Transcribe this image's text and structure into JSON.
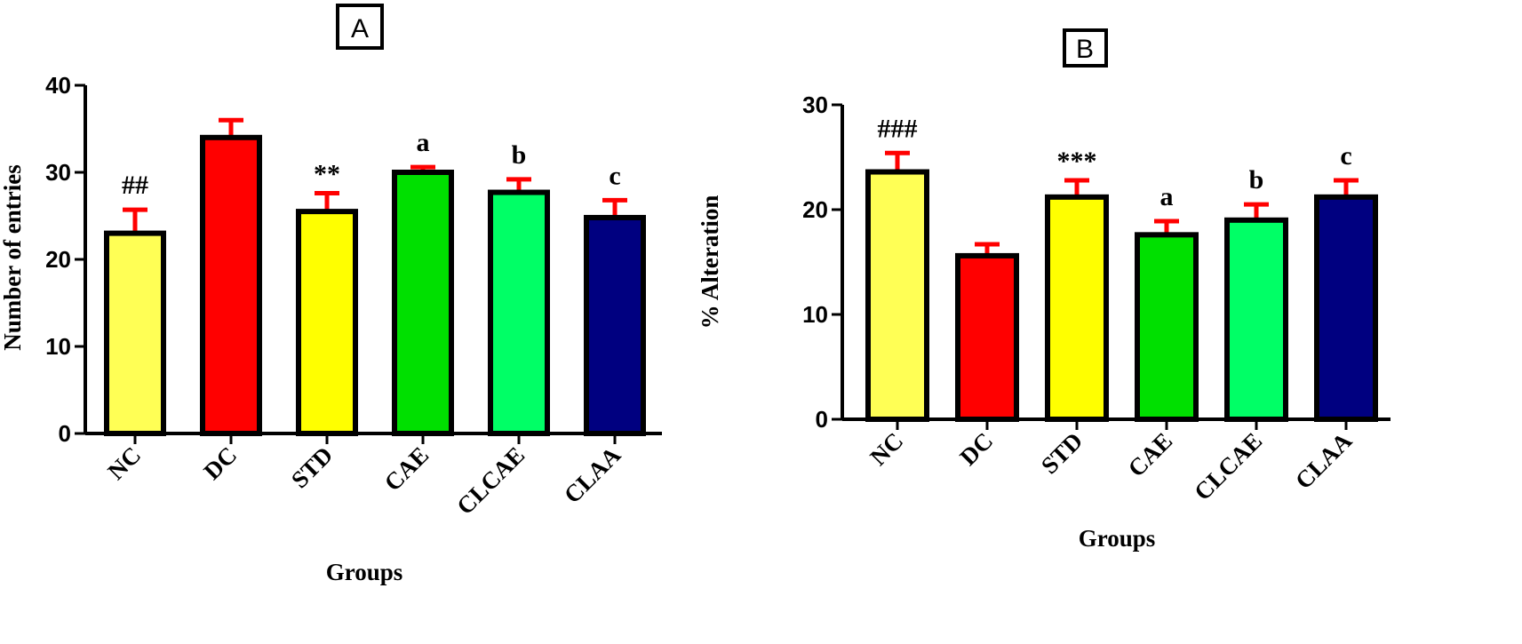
{
  "chart_data": [
    {
      "type": "bar",
      "panel_label": "A",
      "categories": [
        "NC",
        "DC",
        "STD",
        "CAE",
        "CLCAE",
        "CLAA"
      ],
      "values": [
        23,
        34,
        25.5,
        30,
        27.7,
        24.8
      ],
      "errors": [
        2.7,
        2,
        2.1,
        0.6,
        1.5,
        2
      ],
      "annotations": [
        "##",
        "",
        "**",
        "a",
        "b",
        "c"
      ],
      "colors": [
        "#ffff55",
        "#ff0000",
        "#ffff00",
        "#00e000",
        "#00ff66",
        "#000080"
      ],
      "xlabel": "Groups",
      "ylabel": "Number of entries",
      "ylim": [
        0,
        40
      ],
      "yticks": [
        0,
        10,
        20,
        30,
        40
      ],
      "error_color": "#ff0000",
      "grid": false
    },
    {
      "type": "bar",
      "panel_label": "B",
      "categories": [
        "NC",
        "DC",
        "STD",
        "CAE",
        "CLCAE",
        "CLAA"
      ],
      "values": [
        23.6,
        15.6,
        21.2,
        17.6,
        19,
        21.2
      ],
      "errors": [
        1.8,
        1.1,
        1.6,
        1.3,
        1.5,
        1.6
      ],
      "annotations": [
        "###",
        "",
        "***",
        "a",
        "b",
        "c"
      ],
      "colors": [
        "#ffff55",
        "#ff0000",
        "#ffff00",
        "#00e000",
        "#00ff66",
        "#000080"
      ],
      "xlabel": "Groups",
      "ylabel": "% Alteration",
      "ylim": [
        0,
        30
      ],
      "yticks": [
        0,
        10,
        20,
        30
      ],
      "error_color": "#ff0000",
      "grid": false
    }
  ]
}
